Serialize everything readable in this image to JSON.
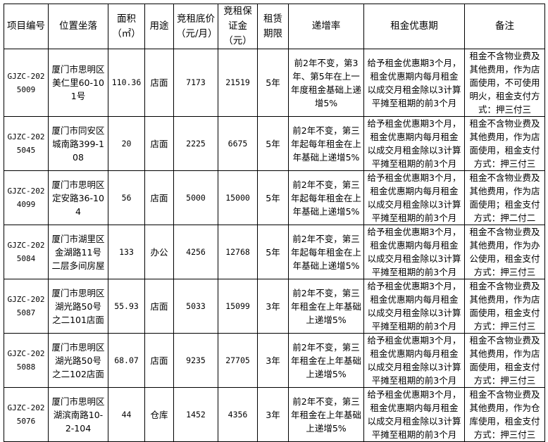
{
  "table": {
    "headers": [
      "项目编号",
      "位置坐落",
      "面积（㎡）",
      "用途",
      "竞租底价（元/月）",
      "竞租保证金（元）",
      "租赁期限",
      "递增率",
      "租金优惠期",
      "备注"
    ],
    "rows": [
      [
        "GJZC-2025009",
        "厦门市思明区美仁里60-101号",
        "110.36",
        "店面",
        "7173",
        "21519",
        "5年",
        "前2年不变，第3年、第5年在上一年度租金基础上递增5%",
        "给予租金优惠期3个月，租金优惠期内每月租金以成交月租金除以3计算平摊至租期的前3个月",
        "租金不含物业费及其他费用，作为店面使用，不可使用明火，租金支付方式：押三付三"
      ],
      [
        "GJZC-2025045",
        "厦门市同安区城南路399-108",
        "20",
        "店面",
        "2225",
        "6675",
        "5年",
        "前2年不变，第三年起每年租金在上年基础上递增5%",
        "给予租金优惠期3个月，租金优惠期内每月租金以成交月租金除以3计算平摊至租期的前3个月",
        "租金不含物业费及其他费用，作为店面使用，租金支付方式：押三付三"
      ],
      [
        "GJZC-2024099",
        "厦门市思明区定安路36-104",
        "56",
        "店面",
        "5000",
        "15000",
        "5年",
        "前2年不变，第三年起每年租金在上年基础上递增5%",
        "给予租金优惠期3个月，租金优惠期内每月租金以成交月租金除以3计算平摊至租期的前3个月",
        "租金不含物业费及其他费用，作为店面使用；租金支付方式：押二付二"
      ],
      [
        "GJZC-2025084",
        "厦门市湖里区金湖路11号二层多间房屋",
        "133",
        "办公",
        "4256",
        "12768",
        "5年",
        "前2年不变，第三年起每年租金在上年基础上递增5%",
        "给予租金优惠期3个月，租金优惠期内每月租金以成交月租金除以3计算平摊至租期的前3个月",
        "租金不含物业费及其他费用，作为办公使用，租金支付方式：押三付三"
      ],
      [
        "GJZC-2025087",
        "厦门市思明区湖光路50号之二101店面",
        "55.93",
        "店面",
        "5033",
        "15099",
        "3年",
        "前2年不变，第三年租金在上年基础上递增5%",
        "给予租金优惠期3个月，租金优惠期内每月租金以成交月租金除以3计算平摊至租期的前3个月",
        "租金不含物业费及其他费用，作为店面使用，租金支付方式：押三付三"
      ],
      [
        "GJZC-2025088",
        "厦门市思明区湖光路50号之二102店面",
        "68.07",
        "店面",
        "9235",
        "27705",
        "3年",
        "前2年不变，第三年租金在上年基础上递增5%",
        "给予租金优惠期3个月，租金优惠期内每月租金以成交月租金除以3计算平摊至租期的前3个月",
        "租金不含物业费及其他费用，作为店面使用，租金支付方式：押三付三"
      ],
      [
        "GJZC-2025076",
        "厦门市思明区湖滨南路10-2-104",
        "44",
        "仓库",
        "1452",
        "4356",
        "3年",
        "前2年不变，第三年租金在上年基础上递增5%",
        "给予租金优惠期3个月，租金优惠期内每月租金以成交月租金除以3计算平摊至租期的前3个月",
        "租金不含物业费及其他费用，作为仓库使用，租金支付方式：押三付三"
      ]
    ]
  }
}
